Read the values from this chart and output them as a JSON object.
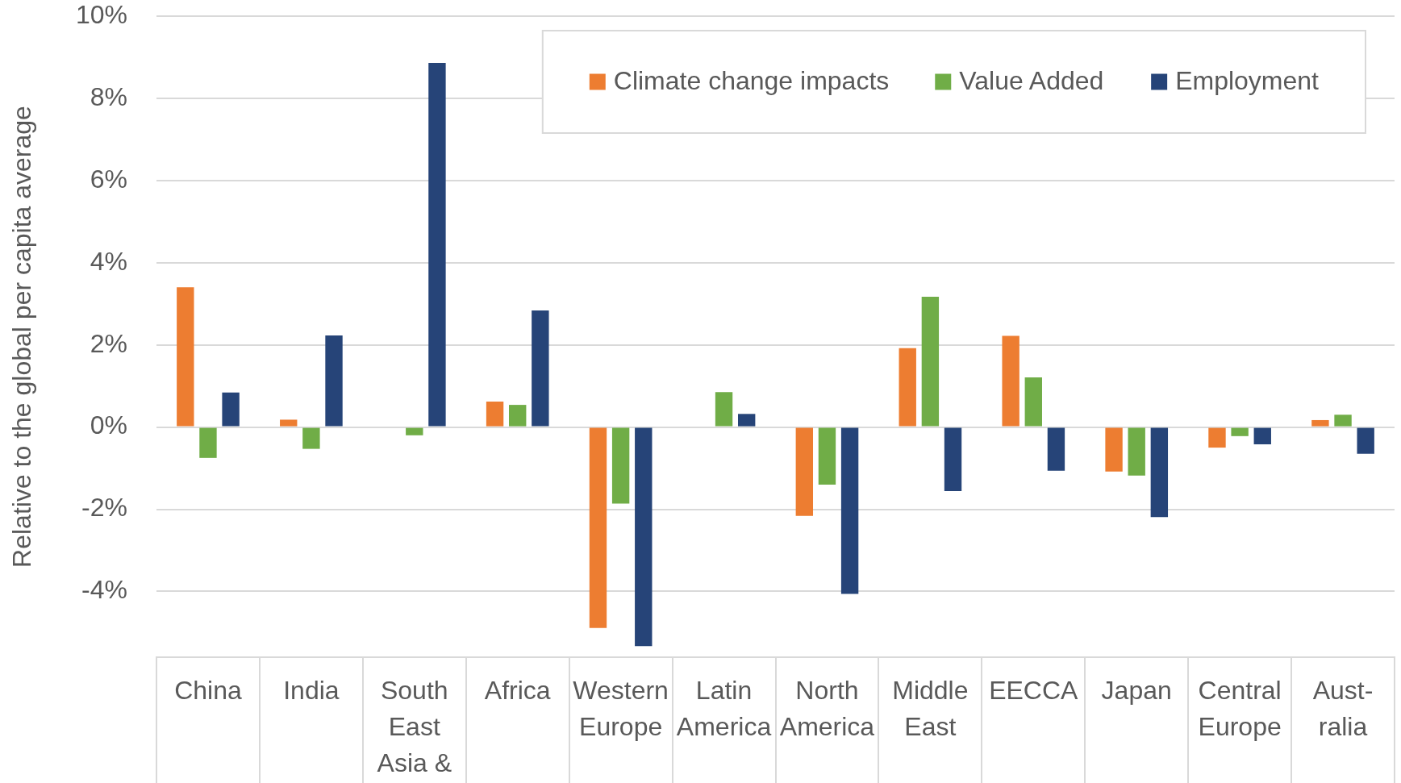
{
  "chart_data": {
    "type": "bar",
    "ylabel": "Relative to the global per capita average",
    "categories": [
      "China",
      "India",
      "South East Asia &",
      "Africa",
      "Western Europe",
      "Latin America",
      "North America",
      "Middle East",
      "EECCA",
      "Japan",
      "Central Europe",
      "Aust-ralia"
    ],
    "series": [
      {
        "name": "Climate change impacts",
        "color": "#ed7d31",
        "values": [
          3.4,
          0.18,
          null,
          0.62,
          -4.89,
          null,
          -2.16,
          1.92,
          2.22,
          -1.08,
          -0.5,
          0.17
        ]
      },
      {
        "name": "Value Added",
        "color": "#70ad47",
        "values": [
          -0.75,
          -0.53,
          -0.2,
          0.54,
          -1.86,
          0.85,
          -1.4,
          3.17,
          1.21,
          -1.18,
          -0.22,
          0.3
        ]
      },
      {
        "name": "Employment",
        "color": "#264478",
        "values": [
          0.84,
          2.23,
          8.86,
          2.84,
          -5.33,
          0.32,
          -4.06,
          -1.56,
          -1.06,
          -2.19,
          -0.42,
          -0.65
        ]
      }
    ],
    "ylim": [
      -5.6,
      10
    ],
    "yticks": [
      {
        "value": -4,
        "label": "-4%"
      },
      {
        "value": -2,
        "label": "-2%"
      },
      {
        "value": 0,
        "label": "0%"
      },
      {
        "value": 2,
        "label": "2%"
      },
      {
        "value": 4,
        "label": "4%"
      },
      {
        "value": 6,
        "label": "6%"
      },
      {
        "value": 8,
        "label": "8%"
      },
      {
        "value": 10,
        "label": "10%"
      }
    ],
    "grid": "y",
    "legend": "top right"
  }
}
